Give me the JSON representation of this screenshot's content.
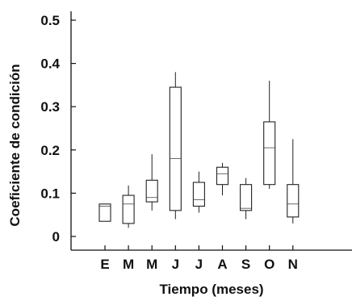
{
  "chart_data": {
    "type": "box",
    "xlabel": "Tiempo (meses)",
    "ylabel": "Coeficiente de condición",
    "ylim": [
      0,
      0.5
    ],
    "yticks": [
      0,
      0.1,
      0.2,
      0.3,
      0.4,
      0.5
    ],
    "ytick_labels": [
      "0",
      "0.1",
      "0.2",
      "0.3",
      "0.4",
      "0.5"
    ],
    "categories": [
      "E",
      "M",
      "M",
      "J",
      "J",
      "A",
      "S",
      "O",
      "N"
    ],
    "boxes": [
      {
        "label": "E",
        "min": 0.035,
        "q1": 0.035,
        "median": 0.07,
        "q3": 0.075,
        "max": 0.075
      },
      {
        "label": "M",
        "min": 0.02,
        "q1": 0.03,
        "median": 0.075,
        "q3": 0.095,
        "max": 0.118
      },
      {
        "label": "M",
        "min": 0.06,
        "q1": 0.08,
        "median": 0.09,
        "q3": 0.13,
        "max": 0.19
      },
      {
        "label": "J",
        "min": 0.04,
        "q1": 0.06,
        "median": 0.18,
        "q3": 0.345,
        "max": 0.38
      },
      {
        "label": "J",
        "min": 0.055,
        "q1": 0.07,
        "median": 0.085,
        "q3": 0.125,
        "max": 0.15
      },
      {
        "label": "A",
        "min": 0.095,
        "q1": 0.12,
        "median": 0.145,
        "q3": 0.16,
        "max": 0.17
      },
      {
        "label": "S",
        "min": 0.04,
        "q1": 0.06,
        "median": 0.065,
        "q3": 0.12,
        "max": 0.135
      },
      {
        "label": "O",
        "min": 0.11,
        "q1": 0.12,
        "median": 0.205,
        "q3": 0.265,
        "max": 0.36
      },
      {
        "label": "N",
        "min": 0.03,
        "q1": 0.045,
        "median": 0.075,
        "q3": 0.12,
        "max": 0.225
      }
    ],
    "grid": false
  }
}
